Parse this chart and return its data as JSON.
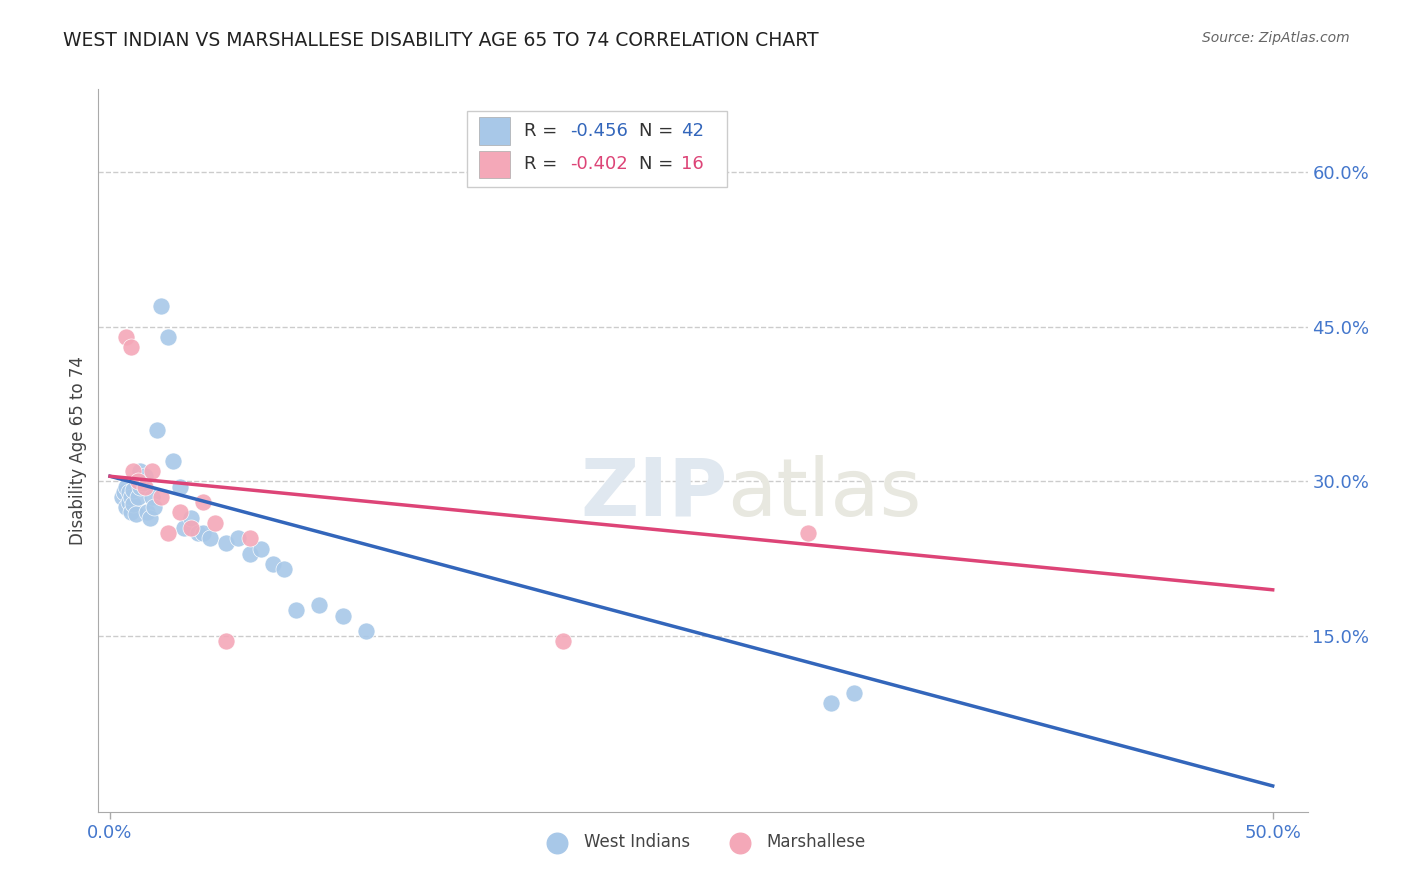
{
  "title": "WEST INDIAN VS MARSHALLESE DISABILITY AGE 65 TO 74 CORRELATION CHART",
  "source": "Source: ZipAtlas.com",
  "ylabel_label": "Disability Age 65 to 74",
  "xlim": [
    -0.005,
    0.515
  ],
  "ylim": [
    -0.02,
    0.68
  ],
  "xtick_vals": [
    0.0,
    0.5
  ],
  "xtick_labels": [
    "0.0%",
    "50.0%"
  ],
  "ytick_vals_right": [
    0.15,
    0.3,
    0.45,
    0.6
  ],
  "ytick_labels_right": [
    "15.0%",
    "30.0%",
    "45.0%",
    "60.0%"
  ],
  "grid_color": "#cccccc",
  "background_color": "#ffffff",
  "blue_color": "#a8c8e8",
  "pink_color": "#f4a8b8",
  "blue_line_color": "#3366bb",
  "pink_line_color": "#dd4477",
  "legend_R_blue": "-0.456",
  "legend_N_blue": "42",
  "legend_R_pink": "-0.402",
  "legend_N_pink": "16",
  "legend_label_blue": "West Indians",
  "legend_label_pink": "Marshallese",
  "west_indian_x": [
    0.005,
    0.006,
    0.007,
    0.007,
    0.008,
    0.008,
    0.009,
    0.009,
    0.01,
    0.01,
    0.011,
    0.012,
    0.013,
    0.013,
    0.014,
    0.015,
    0.016,
    0.017,
    0.018,
    0.019,
    0.02,
    0.022,
    0.025,
    0.027,
    0.03,
    0.032,
    0.035,
    0.038,
    0.04,
    0.043,
    0.05,
    0.055,
    0.06,
    0.065,
    0.07,
    0.075,
    0.08,
    0.09,
    0.1,
    0.11,
    0.31,
    0.32
  ],
  "west_indian_y": [
    0.285,
    0.29,
    0.275,
    0.295,
    0.28,
    0.29,
    0.27,
    0.285,
    0.278,
    0.292,
    0.268,
    0.285,
    0.295,
    0.31,
    0.298,
    0.305,
    0.27,
    0.265,
    0.285,
    0.275,
    0.35,
    0.47,
    0.44,
    0.32,
    0.295,
    0.255,
    0.265,
    0.25,
    0.25,
    0.245,
    0.24,
    0.245,
    0.23,
    0.235,
    0.22,
    0.215,
    0.175,
    0.18,
    0.17,
    0.155,
    0.085,
    0.095
  ],
  "marshallese_x": [
    0.007,
    0.009,
    0.01,
    0.012,
    0.015,
    0.018,
    0.022,
    0.025,
    0.03,
    0.035,
    0.04,
    0.045,
    0.05,
    0.06,
    0.195,
    0.3
  ],
  "marshallese_y": [
    0.44,
    0.43,
    0.31,
    0.3,
    0.295,
    0.31,
    0.285,
    0.25,
    0.27,
    0.255,
    0.28,
    0.26,
    0.145,
    0.245,
    0.145,
    0.25
  ],
  "blue_line_x": [
    0.0,
    0.5
  ],
  "blue_line_y": [
    0.305,
    0.005
  ],
  "pink_line_x": [
    0.0,
    0.5
  ],
  "pink_line_y": [
    0.305,
    0.195
  ]
}
